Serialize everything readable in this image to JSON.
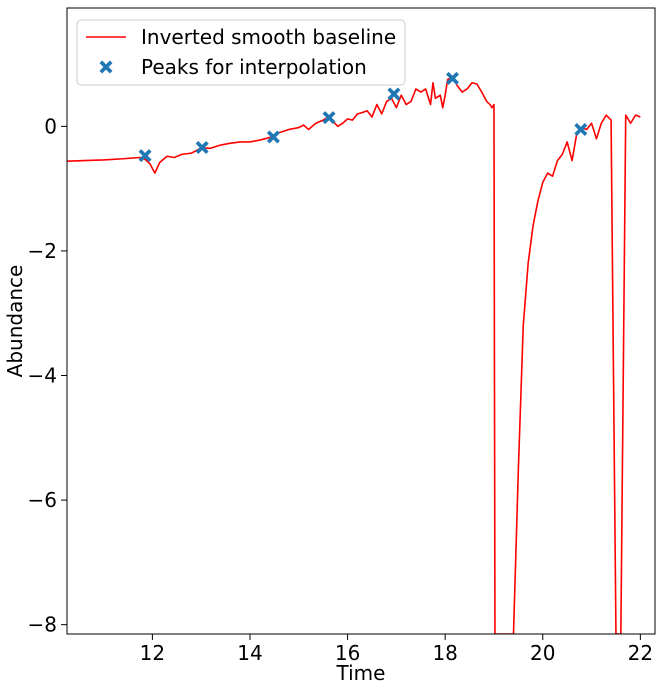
{
  "chart_data": {
    "type": "line",
    "title": "",
    "xlabel": "Time",
    "ylabel": "Abundance",
    "xlim": [
      10.25,
      22.3
    ],
    "ylim": [
      -8.15,
      1.9
    ],
    "xticks": [
      12,
      14,
      16,
      18,
      20,
      22
    ],
    "yticks": [
      0,
      -2,
      -4,
      -6,
      -8
    ],
    "xtick_labels": [
      "12",
      "14",
      "16",
      "18",
      "20",
      "22"
    ],
    "ytick_labels": [
      "0",
      "−2",
      "−4",
      "−6",
      "−8"
    ],
    "grid": false,
    "legend_position": "upper-left",
    "series": [
      {
        "name": "Inverted smooth baseline",
        "kind": "line",
        "color": "#ff0000",
        "x": [
          10.25,
          10.6,
          11.0,
          11.4,
          11.75,
          11.85,
          11.95,
          12.05,
          12.15,
          12.3,
          12.45,
          12.6,
          12.8,
          13.0,
          13.2,
          13.4,
          13.6,
          13.8,
          14.0,
          14.2,
          14.4,
          14.5,
          14.6,
          14.8,
          15.0,
          15.1,
          15.2,
          15.35,
          15.5,
          15.6,
          15.7,
          15.8,
          15.9,
          16.0,
          16.1,
          16.2,
          16.3,
          16.4,
          16.5,
          16.6,
          16.7,
          16.8,
          16.9,
          17.0,
          17.1,
          17.2,
          17.3,
          17.4,
          17.5,
          17.6,
          17.7,
          17.75,
          17.8,
          17.9,
          17.95,
          18.0,
          18.05,
          18.15,
          18.25,
          18.35,
          18.45,
          18.55,
          18.65,
          18.75,
          18.85,
          18.92,
          18.96,
          19.0,
          19.02,
          19.4,
          19.5,
          19.6,
          19.7,
          19.8,
          19.9,
          20.0,
          20.1,
          20.2,
          20.3,
          20.4,
          20.5,
          20.6,
          20.7,
          20.8,
          20.9,
          21.0,
          21.1,
          21.2,
          21.3,
          21.4,
          21.5,
          21.6,
          21.7,
          21.8,
          21.9,
          22.0
        ],
        "y": [
          -0.56,
          -0.55,
          -0.54,
          -0.52,
          -0.5,
          -0.53,
          -0.6,
          -0.75,
          -0.58,
          -0.48,
          -0.5,
          -0.45,
          -0.43,
          -0.35,
          -0.35,
          -0.3,
          -0.27,
          -0.25,
          -0.25,
          -0.22,
          -0.18,
          -0.15,
          -0.1,
          -0.05,
          -0.02,
          0.02,
          -0.05,
          0.05,
          0.1,
          0.15,
          0.08,
          0.0,
          0.05,
          0.12,
          0.1,
          0.2,
          0.22,
          0.25,
          0.15,
          0.35,
          0.2,
          0.4,
          0.45,
          0.3,
          0.5,
          0.35,
          0.4,
          0.6,
          0.55,
          0.6,
          0.35,
          0.7,
          0.45,
          0.5,
          0.3,
          0.5,
          0.75,
          0.8,
          0.65,
          0.55,
          0.6,
          0.7,
          0.68,
          0.55,
          0.4,
          0.35,
          0.3,
          0.35,
          -8.15,
          -8.15,
          -5.5,
          -3.2,
          -2.2,
          -1.6,
          -1.2,
          -0.9,
          -0.75,
          -0.8,
          -0.55,
          -0.45,
          -0.25,
          -0.55,
          -0.1,
          -0.02,
          -0.05,
          0.05,
          -0.2,
          0.05,
          0.18,
          0.1,
          -8.15,
          -8.15,
          0.18,
          0.05,
          0.18,
          0.15
        ]
      },
      {
        "name": "Peaks for interpolation",
        "kind": "scatter",
        "color": "#1f77b4",
        "marker": "X",
        "x": [
          11.85,
          13.02,
          14.48,
          15.62,
          16.95,
          18.15,
          20.78
        ],
        "y": [
          -0.47,
          -0.34,
          -0.17,
          0.14,
          0.52,
          0.77,
          -0.05
        ]
      }
    ]
  }
}
